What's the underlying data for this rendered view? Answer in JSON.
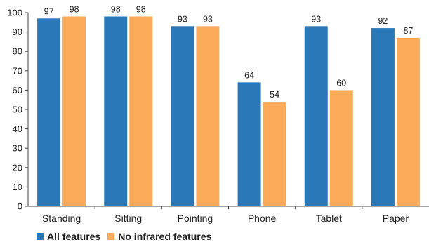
{
  "chart_data": {
    "type": "bar",
    "categories": [
      "Standing",
      "Sitting",
      "Pointing",
      "Phone",
      "Tablet",
      "Paper"
    ],
    "series": [
      {
        "name": "All features",
        "color": "#2b78b9",
        "values": [
          97,
          98,
          93,
          64,
          93,
          92
        ]
      },
      {
        "name": "No infrared features",
        "color": "#fbaa5a",
        "values": [
          98,
          98,
          93,
          54,
          60,
          87
        ]
      }
    ],
    "ylim": [
      0,
      100
    ],
    "yticks": [
      0,
      10,
      20,
      30,
      40,
      50,
      60,
      70,
      80,
      90,
      100
    ],
    "legend_position": "bottom-left",
    "grid": false,
    "title": "",
    "xlabel": "",
    "ylabel": ""
  }
}
